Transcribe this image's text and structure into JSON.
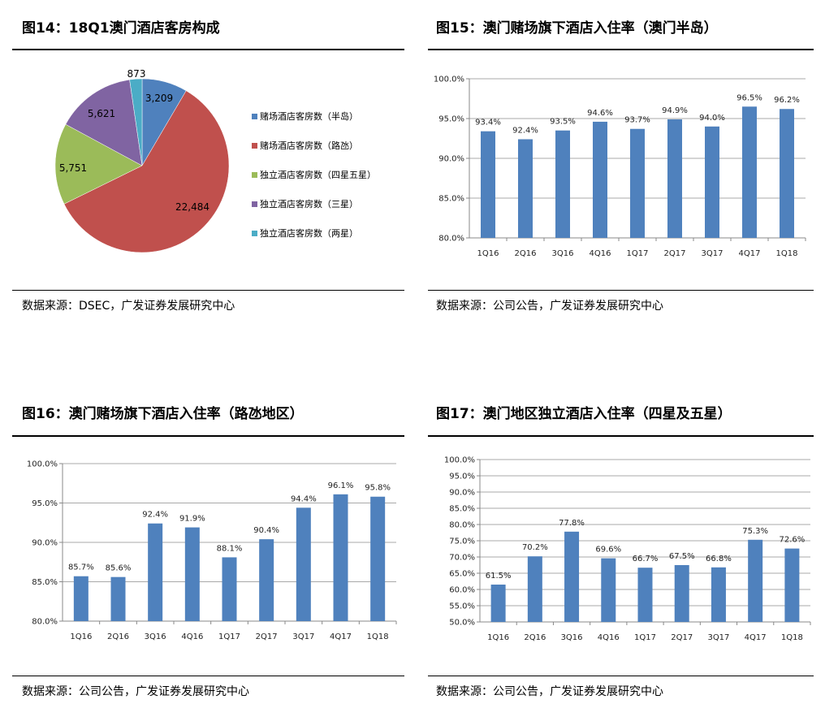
{
  "figures": [
    {
      "title": "图14：18Q1澳门酒店客房构成",
      "source": "数据来源：DSEC，广发证券发展研究中心"
    },
    {
      "title": "图15：澳门赌场旗下酒店入住率（澳门半岛）",
      "source": "数据来源：公司公告，广发证券发展研究中心"
    },
    {
      "title": "图16：澳门赌场旗下酒店入住率（路氹地区）",
      "source": "数据来源：公司公告，广发证券发展研究中心"
    },
    {
      "title": "图17：澳门地区独立酒店入住率（四星及五星）",
      "source": "数据来源：公司公告，广发证券发展研究中心"
    }
  ],
  "chart_data": [
    {
      "type": "pie",
      "labels": [
        "赌场酒店客房数（半岛）",
        "赌场酒店客房数（路氹）",
        "独立酒店客房数（四星五星）",
        "独立酒店客房数（三星）",
        "独立酒店客房数（两星）"
      ],
      "values": [
        3209,
        22484,
        5751,
        5621,
        873
      ],
      "data_labels": [
        "3,209",
        "22,484",
        "5,751",
        "5,621",
        "873"
      ],
      "colors": [
        "#4f81bd",
        "#c0504d",
        "#9bbb59",
        "#8064a2",
        "#4bacc6"
      ],
      "legend": "right"
    },
    {
      "type": "bar",
      "categories": [
        "1Q16",
        "2Q16",
        "3Q16",
        "4Q16",
        "1Q17",
        "2Q17",
        "3Q17",
        "4Q17",
        "1Q18"
      ],
      "values": [
        93.4,
        92.4,
        93.5,
        94.6,
        93.7,
        94.9,
        94.0,
        96.5,
        96.2
      ],
      "ylim": [
        80,
        100
      ],
      "yticks": [
        80,
        85,
        90,
        95,
        100
      ],
      "tick_format": "%",
      "grid": true,
      "color": "#4f81bd"
    },
    {
      "type": "bar",
      "categories": [
        "1Q16",
        "2Q16",
        "3Q16",
        "4Q16",
        "1Q17",
        "2Q17",
        "3Q17",
        "4Q17",
        "1Q18"
      ],
      "values": [
        85.7,
        85.6,
        92.4,
        91.9,
        88.1,
        90.4,
        94.4,
        96.1,
        95.8
      ],
      "ylim": [
        80,
        100
      ],
      "yticks": [
        80,
        85,
        90,
        95,
        100
      ],
      "tick_format": "%",
      "grid": true,
      "color": "#4f81bd"
    },
    {
      "type": "bar",
      "categories": [
        "1Q16",
        "2Q16",
        "3Q16",
        "4Q16",
        "1Q17",
        "2Q17",
        "3Q17",
        "4Q17",
        "1Q18"
      ],
      "values": [
        61.5,
        70.2,
        77.8,
        69.6,
        66.7,
        67.5,
        66.8,
        75.3,
        72.6
      ],
      "ylim": [
        50,
        100
      ],
      "yticks": [
        50,
        55,
        60,
        65,
        70,
        75,
        80,
        85,
        90,
        95,
        100
      ],
      "tick_format": "%",
      "grid": true,
      "color": "#4f81bd"
    }
  ]
}
